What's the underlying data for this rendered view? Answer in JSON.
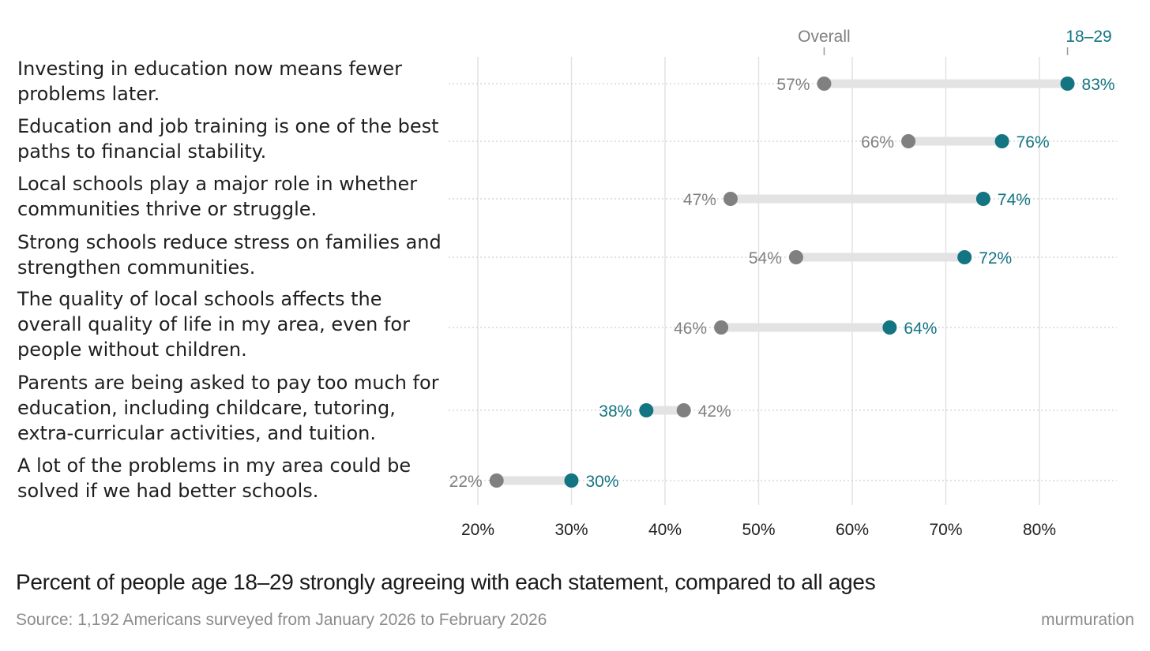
{
  "chart_data": {
    "type": "dumbbell",
    "title": "Percent of people age 18–29 strongly agreeing with each statement, compared to all ages",
    "source": "Source: 1,192 Americans surveyed from January 2026 to February 2026",
    "brand": "murmuration",
    "legend": {
      "overall": "Overall",
      "young": "18–29"
    },
    "x_ticks": [
      20,
      30,
      40,
      50,
      60,
      70,
      80
    ],
    "x_tick_labels": [
      "20%",
      "30%",
      "40%",
      "50%",
      "60%",
      "70%",
      "80%"
    ],
    "xlim": [
      17,
      88
    ],
    "colors": {
      "overall": "#808080",
      "young": "#137482",
      "bar": "#e3e3e3",
      "grid": "#e2e2e2"
    },
    "rows": [
      {
        "lines": [
          "Investing in education now means fewer",
          "problems later."
        ],
        "overall": 57,
        "young": 83,
        "overall_label": "57%",
        "young_label": "83%"
      },
      {
        "lines": [
          "Education and job training is one of the best",
          "paths to financial stability."
        ],
        "overall": 66,
        "young": 76,
        "overall_label": "66%",
        "young_label": "76%"
      },
      {
        "lines": [
          "Local schools play a major role in whether",
          "communities thrive or struggle."
        ],
        "overall": 47,
        "young": 74,
        "overall_label": "47%",
        "young_label": "74%"
      },
      {
        "lines": [
          "Strong schools reduce stress on families and",
          "strengthen communities."
        ],
        "overall": 54,
        "young": 72,
        "overall_label": "54%",
        "young_label": "72%"
      },
      {
        "lines": [
          "The quality of local schools affects the",
          "overall quality of life in my area, even for",
          "people without children."
        ],
        "overall": 46,
        "young": 64,
        "overall_label": "46%",
        "young_label": "64%"
      },
      {
        "lines": [
          "Parents are being asked to pay too much for",
          "education, including childcare, tutoring,",
          "extra-curricular activities, and tuition."
        ],
        "overall": 42,
        "young": 38,
        "overall_label": "42%",
        "young_label": "38%"
      },
      {
        "lines": [
          "A lot of the problems in my area could be",
          "solved if we had better schools."
        ],
        "overall": 22,
        "young": 30,
        "overall_label": "22%",
        "young_label": "30%"
      }
    ]
  }
}
